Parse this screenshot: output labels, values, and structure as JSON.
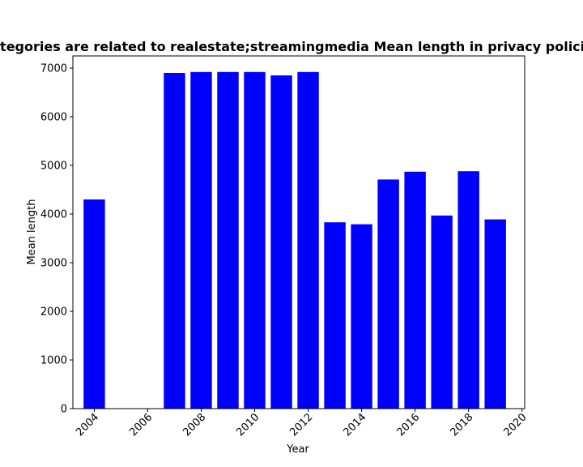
{
  "chart_data": {
    "type": "bar",
    "title": "Categories are related to realestate;streamingmedia Mean length in privacy policies",
    "xlabel": "Year",
    "ylabel": "Mean length",
    "x": [
      2004,
      2007,
      2008,
      2009,
      2010,
      2011,
      2012,
      2013,
      2014,
      2015,
      2016,
      2017,
      2018,
      2019
    ],
    "values": [
      4300,
      6900,
      6920,
      6920,
      6920,
      6850,
      6920,
      3830,
      3790,
      4710,
      4870,
      3970,
      4880,
      3890
    ],
    "xlim": [
      2003.2,
      2020.1
    ],
    "ylim": [
      0,
      7250
    ],
    "xticks": [
      2004,
      2006,
      2008,
      2010,
      2012,
      2014,
      2016,
      2018,
      2020
    ],
    "yticks": [
      0,
      1000,
      2000,
      3000,
      4000,
      5000,
      6000,
      7000
    ],
    "bar_color": "#0000ff",
    "grid": false,
    "legend": "none"
  }
}
